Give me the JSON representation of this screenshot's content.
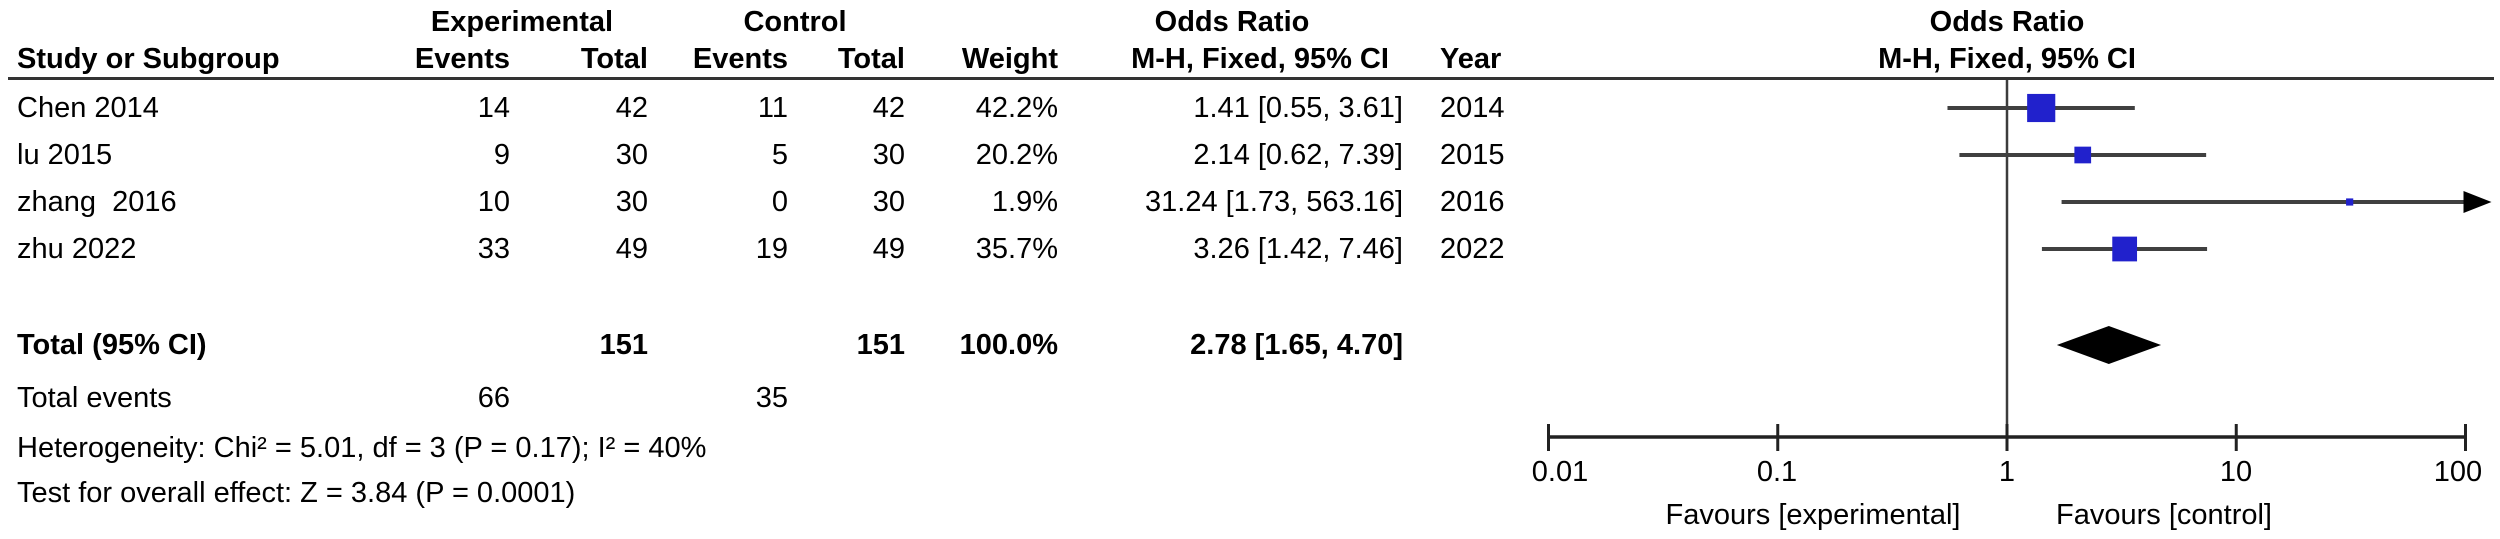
{
  "table": {
    "headers": {
      "group1": "Experimental",
      "group2": "Control",
      "or_left": "Odds Ratio",
      "or_right": "Odds Ratio",
      "study": "Study or Subgroup",
      "events1": "Events",
      "total1": "Total",
      "events2": "Events",
      "total2": "Total",
      "weight": "Weight",
      "mh_left": "M-H, Fixed, 95% CI",
      "year": "Year",
      "mh_right": "M-H, Fixed, 95% CI"
    },
    "rows": [
      {
        "study": "Chen 2014",
        "e1": "14",
        "t1": "42",
        "e2": "11",
        "t2": "42",
        "weight": "42.2%",
        "or": "1.41 [0.55, 3.61]",
        "year": "2014"
      },
      {
        "study": "lu 2015",
        "e1": "9",
        "t1": "30",
        "e2": "5",
        "t2": "30",
        "weight": "20.2%",
        "or": "2.14 [0.62, 7.39]",
        "year": "2015"
      },
      {
        "study": "zhang  2016",
        "e1": "10",
        "t1": "30",
        "e2": "0",
        "t2": "30",
        "weight": "1.9%",
        "or": "31.24 [1.73, 563.16]",
        "year": "2016"
      },
      {
        "study": "zhu 2022",
        "e1": "33",
        "t1": "49",
        "e2": "19",
        "t2": "49",
        "weight": "35.7%",
        "or": "3.26 [1.42, 7.46]",
        "year": "2022"
      }
    ],
    "total": {
      "label": "Total (95% CI)",
      "t1": "151",
      "t2": "151",
      "weight": "100.0%",
      "or": "2.78 [1.65, 4.70]"
    },
    "total_events": {
      "label": "Total events",
      "e1": "66",
      "e2": "35"
    },
    "heterogeneity": "Heterogeneity: Chi² = 5.01, df = 3 (P = 0.17); I² = 40%",
    "overall": "Test for overall effect: Z = 3.84 (P = 0.0001)"
  },
  "chart_data": {
    "type": "forest",
    "effect_measure": "Odds Ratio, M-H, Fixed, 95% CI",
    "scale": "log10",
    "xlim": [
      0.01,
      100
    ],
    "null_line": 1,
    "xticks": [
      0.01,
      0.1,
      1,
      10,
      100
    ],
    "axis_labels": [
      "0.01",
      "0.1",
      "1",
      "10",
      "100"
    ],
    "studies": [
      {
        "name": "Chen 2014",
        "year": 2014,
        "or": 1.41,
        "ci_low": 0.55,
        "ci_high": 3.61,
        "weight": 42.2
      },
      {
        "name": "lu 2015",
        "year": 2015,
        "or": 2.14,
        "ci_low": 0.62,
        "ci_high": 7.39,
        "weight": 20.2
      },
      {
        "name": "zhang 2016",
        "year": 2016,
        "or": 31.24,
        "ci_low": 1.73,
        "ci_high": 563.16,
        "weight": 1.9
      },
      {
        "name": "zhu 2022",
        "year": 2022,
        "or": 3.26,
        "ci_low": 1.42,
        "ci_high": 7.46,
        "weight": 35.7
      }
    ],
    "total": {
      "or": 2.78,
      "ci_low": 1.65,
      "ci_high": 4.7
    },
    "favours_left": "Favours [experimental]",
    "favours_right": "Favours [control]",
    "marker_color": "#2121CC",
    "diamond_color": "#000000",
    "line_color": "#404040"
  }
}
